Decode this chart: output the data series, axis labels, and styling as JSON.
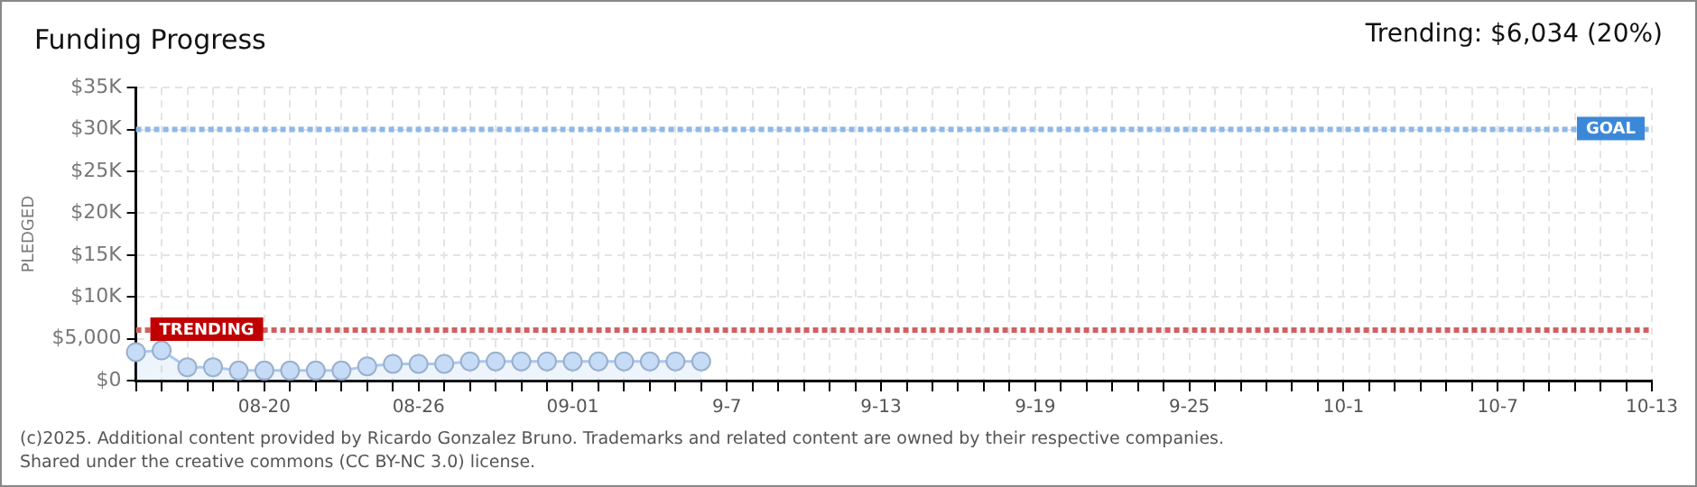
{
  "chart_data": {
    "type": "area",
    "title": "Funding Progress",
    "subtitle": "Trending: $6,034 (20%)",
    "ylabel": "PLEDGED",
    "categories": [
      null,
      null,
      null,
      null,
      null,
      "08-20",
      null,
      null,
      null,
      null,
      null,
      "08-26",
      null,
      null,
      null,
      null,
      null,
      "09-01",
      null,
      null,
      null,
      null,
      null,
      "9-7",
      null,
      null,
      null,
      null,
      null,
      "9-13",
      null,
      null,
      null,
      null,
      null,
      "9-19",
      null,
      null,
      null,
      null,
      null,
      "9-25",
      null,
      null,
      null,
      null,
      null,
      "10-1",
      null,
      null,
      null,
      null,
      null,
      "10-7",
      null,
      null,
      null,
      null,
      null,
      "10-13"
    ],
    "series": [
      {
        "color": "#a8c8f0",
        "values": [
          3400,
          3600,
          1600,
          1600,
          1200,
          1200,
          1200,
          1200,
          1200,
          1700,
          2000,
          2000,
          2000,
          2300,
          2300,
          2300,
          2300,
          2300,
          2300,
          2300,
          2300,
          2300,
          2300,
          null,
          null,
          null,
          null,
          null,
          null,
          null,
          null,
          null,
          null,
          null,
          null,
          null,
          null,
          null,
          null,
          null,
          null,
          null,
          null,
          null,
          null,
          null,
          null,
          null,
          null,
          null,
          null,
          null,
          null,
          null,
          null,
          null,
          null,
          null,
          null,
          null
        ]
      }
    ],
    "ylim": [
      0,
      35000
    ],
    "yticks": [
      {
        "value": 0,
        "label": "$0"
      },
      {
        "value": 5000,
        "label": "$5,000"
      },
      {
        "value": 10000,
        "label": "$10K"
      },
      {
        "value": 15000,
        "label": "$15K"
      },
      {
        "value": 20000,
        "label": "$20K"
      },
      {
        "value": 25000,
        "label": "$25K"
      },
      {
        "value": 30000,
        "label": "$30K"
      },
      {
        "value": 35000,
        "label": "$35K"
      }
    ],
    "ref_lines": [
      {
        "axis": "y",
        "value": 30000,
        "label": "GOAL",
        "color": "#8fb8e8",
        "line_style": "dotted"
      },
      {
        "axis": "y",
        "value": 6034,
        "label": "TRENDING",
        "color": "#d06060",
        "line_style": "dotted"
      }
    ],
    "grid": true,
    "marker": "circle",
    "legend": false,
    "annotations": [
      "(c)2025. Additional content provided by Ricardo Gonzalez Bruno. Trademarks and related content are owned by their respective companies.",
      "Shared under the creative commons (CC BY-NC 3.0) license."
    ]
  }
}
